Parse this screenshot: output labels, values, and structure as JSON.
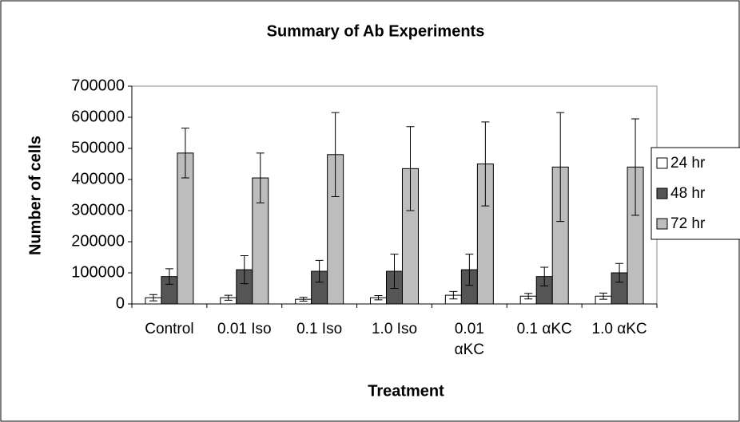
{
  "chart_data": {
    "type": "bar",
    "title": "Summary of Ab Experiments",
    "x_label": "Treatment",
    "y_label": "Number of cells",
    "categories": [
      "Control",
      "0.01 Iso",
      "0.1 Iso",
      "1.0 Iso",
      "0.01 αKC",
      "0.1 αKC",
      "1.0 αKC"
    ],
    "series": [
      {
        "name": "24 hr",
        "color": "#ffffff",
        "values": [
          20000,
          20000,
          15000,
          20000,
          28000,
          25000,
          25000
        ],
        "errors": [
          10000,
          8000,
          6000,
          7000,
          12000,
          9000,
          10000
        ]
      },
      {
        "name": "48 hr",
        "color": "#555555",
        "values": [
          88000,
          110000,
          105000,
          105000,
          110000,
          88000,
          100000
        ],
        "errors": [
          25000,
          45000,
          35000,
          55000,
          50000,
          30000,
          30000
        ]
      },
      {
        "name": "72 hr",
        "color": "#bdbdbd",
        "values": [
          485000,
          405000,
          480000,
          435000,
          450000,
          440000,
          440000
        ],
        "errors": [
          80000,
          80000,
          135000,
          135000,
          135000,
          175000,
          155000
        ]
      }
    ],
    "ylim": [
      0,
      700000
    ],
    "yticks": [
      0,
      100000,
      200000,
      300000,
      400000,
      500000,
      600000,
      700000
    ],
    "legend": "right"
  }
}
